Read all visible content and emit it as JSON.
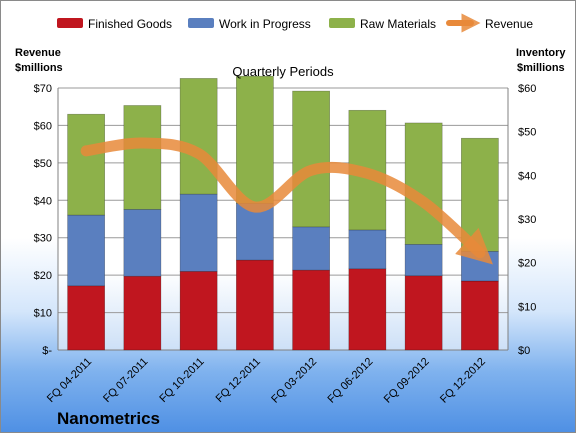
{
  "chart_data": {
    "type": "bar",
    "stacked": true,
    "title": "Quarterly Periods",
    "company": "Nanometrics",
    "categories": [
      "FQ 04-2011",
      "FQ 07-2011",
      "FQ 10-2011",
      "FQ 12-2011",
      "FQ 03-2012",
      "FQ 06-2012",
      "FQ 09-2012",
      "FQ 12-2012"
    ],
    "series": [
      {
        "name": "Finished Goods",
        "color": "#c0161f",
        "values": [
          14.7,
          16.9,
          18.0,
          20.6,
          18.3,
          18.6,
          17.0,
          15.8
        ]
      },
      {
        "name": "Work in Progress",
        "color": "#5a7fbf",
        "values": [
          16.2,
          15.3,
          17.7,
          13.0,
          9.9,
          8.9,
          7.2,
          6.8
        ]
      },
      {
        "name": "Raw Materials",
        "color": "#8db14a",
        "values": [
          23.1,
          23.8,
          26.5,
          29.1,
          31.1,
          27.4,
          27.8,
          25.9
        ]
      }
    ],
    "line_series": {
      "name": "Revenue",
      "color": "#e8893a",
      "axis": "left",
      "values": [
        53.2,
        55.3,
        52.5,
        38.2,
        48.0,
        47.2,
        39.5,
        26.0
      ]
    },
    "left_axis": {
      "label_line1": "Revenue",
      "label_line2": "$millions",
      "ylim": [
        0,
        70
      ],
      "ticks": [
        "$-",
        "$10",
        "$20",
        "$30",
        "$40",
        "$50",
        "$60",
        "$70"
      ]
    },
    "right_axis": {
      "label_line1": "Inventory",
      "label_line2": "$millions",
      "ylim": [
        0,
        60
      ],
      "ticks": [
        "$0",
        "$10",
        "$20",
        "$30",
        "$40",
        "$50",
        "$60"
      ]
    },
    "legend_position": "top",
    "grid": true
  }
}
